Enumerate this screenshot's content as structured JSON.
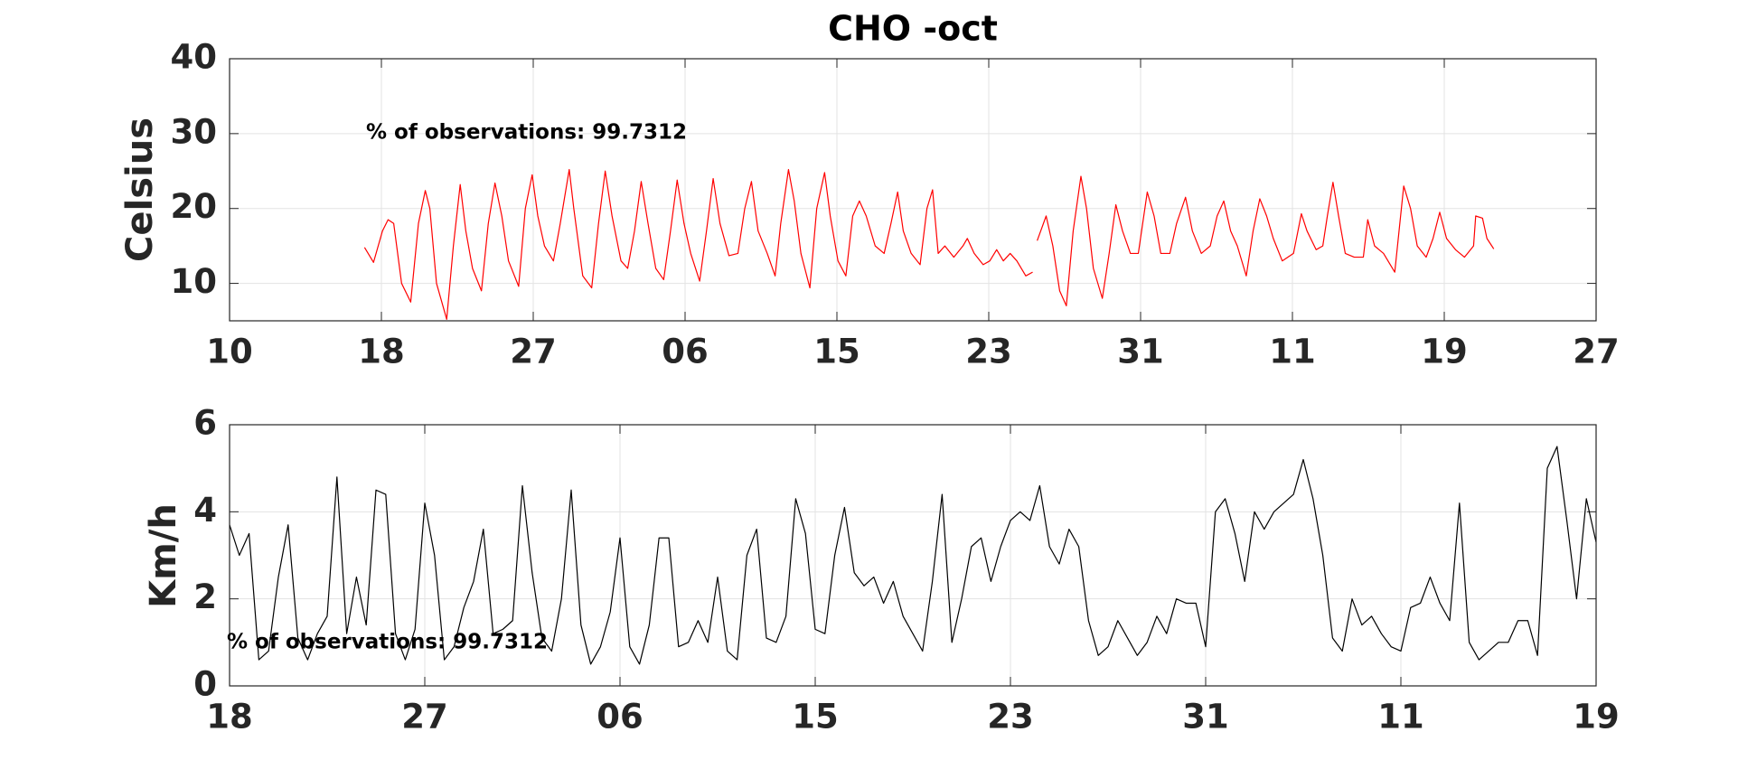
{
  "chart_data": [
    {
      "type": "line",
      "title": "CHO -oct",
      "ylabel": "Celsius",
      "annotation": "% of observations: 99.7312",
      "color": "#ff0000",
      "grid": true,
      "xlim": [
        0,
        9
      ],
      "xticks": [
        {
          "value": 0,
          "label": "10"
        },
        {
          "value": 1,
          "label": "18"
        },
        {
          "value": 2,
          "label": "27"
        },
        {
          "value": 3,
          "label": "06"
        },
        {
          "value": 4,
          "label": "15"
        },
        {
          "value": 5,
          "label": "23"
        },
        {
          "value": 6,
          "label": "31"
        },
        {
          "value": 7,
          "label": "11"
        },
        {
          "value": 8,
          "label": "19"
        },
        {
          "value": 9,
          "label": "27"
        }
      ],
      "ylim": [
        5,
        40
      ],
      "yticks": [
        10,
        20,
        30,
        40
      ],
      "x": [
        0.889,
        0.948,
        1.007,
        1.044,
        1.081,
        1.133,
        1.193,
        1.244,
        1.289,
        1.319,
        1.363,
        1.43,
        1.474,
        1.519,
        1.556,
        1.6,
        1.659,
        1.704,
        1.748,
        1.793,
        1.837,
        1.904,
        1.948,
        1.993,
        2.03,
        2.074,
        2.133,
        2.178,
        2.237,
        2.267,
        2.326,
        2.385,
        2.43,
        2.474,
        2.519,
        2.578,
        2.622,
        2.667,
        2.711,
        2.756,
        2.807,
        2.859,
        2.904,
        2.948,
        2.993,
        3.037,
        3.096,
        3.141,
        3.185,
        3.23,
        3.289,
        3.348,
        3.393,
        3.437,
        3.481,
        3.541,
        3.593,
        3.63,
        3.681,
        3.719,
        3.763,
        3.822,
        3.867,
        3.919,
        3.956,
        4.007,
        4.059,
        4.104,
        4.148,
        4.193,
        4.252,
        4.311,
        4.356,
        4.4,
        4.437,
        4.489,
        4.548,
        4.593,
        4.63,
        4.667,
        4.711,
        4.77,
        4.83,
        4.859,
        4.904,
        4.963,
        5.007,
        5.052,
        5.096,
        5.141,
        5.185,
        5.244,
        5.289,
        5.304,
        5.319,
        5.378,
        5.422,
        5.467,
        5.511,
        5.556,
        5.607,
        5.644,
        5.689,
        5.748,
        5.793,
        5.837,
        5.881,
        5.933,
        5.985,
        6.044,
        6.089,
        6.133,
        6.193,
        6.237,
        6.296,
        6.341,
        6.4,
        6.459,
        6.504,
        6.548,
        6.593,
        6.637,
        6.696,
        6.741,
        6.785,
        6.83,
        6.874,
        6.933,
        7.007,
        7.059,
        7.096,
        7.156,
        7.2,
        7.23,
        7.267,
        7.304,
        7.348,
        7.407,
        7.467,
        7.496,
        7.541,
        7.6,
        7.674,
        7.733,
        7.778,
        7.822,
        7.881,
        7.926,
        7.97,
        8.015,
        8.074,
        8.133,
        8.193,
        8.207,
        8.252,
        8.281,
        8.326
      ],
      "values": [
        14.8,
        12.8,
        17,
        18.5,
        18,
        10,
        7.5,
        18,
        22.4,
        20,
        10,
        5.2,
        15,
        23.2,
        17,
        12,
        9,
        18,
        23.4,
        19,
        13,
        9.6,
        20,
        24.5,
        19,
        15,
        13,
        18,
        25.2,
        20,
        11,
        9.4,
        18,
        25,
        19,
        13,
        12,
        17,
        23.6,
        18,
        12,
        10.5,
        17,
        23.8,
        18,
        14,
        10.3,
        17,
        24,
        18,
        13.7,
        14,
        20,
        23.6,
        17,
        14,
        11,
        18,
        25.2,
        21,
        14,
        9.4,
        20,
        24.8,
        19,
        13,
        11,
        19,
        21,
        19,
        15,
        14,
        18,
        22.2,
        17,
        14,
        12.5,
        20,
        22.5,
        14,
        15,
        13.5,
        15,
        16,
        14,
        12.5,
        13,
        14.5,
        13,
        14,
        13,
        11,
        11.5,
        null,
        15.7,
        19,
        15,
        9,
        7,
        17,
        24.3,
        20,
        12,
        8,
        14,
        20.5,
        17,
        14,
        14,
        22.2,
        19,
        14,
        14,
        18,
        21.5,
        17,
        14,
        15,
        19,
        21,
        17,
        15,
        11,
        17,
        21.3,
        19,
        16,
        13,
        14,
        19.3,
        17,
        14.5,
        15,
        19,
        23.5,
        19,
        14,
        13.5,
        13.5,
        18.5,
        15,
        14,
        11.5,
        23,
        20,
        15,
        13.5,
        16,
        19.5,
        16,
        14.5,
        13.5,
        15,
        19,
        18.7,
        16,
        14.6
      ]
    },
    {
      "type": "line",
      "ylabel": "Km/h",
      "annotation": "% of observations: 99.7312",
      "color": "#000000",
      "grid": true,
      "xlim": [
        0,
        7
      ],
      "xticks": [
        {
          "value": 0,
          "label": "18"
        },
        {
          "value": 1,
          "label": "27"
        },
        {
          "value": 2,
          "label": "06"
        },
        {
          "value": 3,
          "label": "15"
        },
        {
          "value": 4,
          "label": "23"
        },
        {
          "value": 5,
          "label": "31"
        },
        {
          "value": 6,
          "label": "11"
        },
        {
          "value": 7,
          "label": "19"
        }
      ],
      "ylim": [
        0,
        6
      ],
      "yticks": [
        0,
        2,
        4,
        6
      ],
      "x": [
        0,
        0.05,
        0.1,
        0.15,
        0.2,
        0.25,
        0.3,
        0.35,
        0.4,
        0.45,
        0.5,
        0.55,
        0.6,
        0.65,
        0.7,
        0.75,
        0.8,
        0.85,
        0.9,
        0.95,
        1,
        1.05,
        1.1,
        1.15,
        1.2,
        1.25,
        1.3,
        1.35,
        1.4,
        1.45,
        1.5,
        1.55,
        1.6,
        1.65,
        1.7,
        1.75,
        1.8,
        1.85,
        1.9,
        1.95,
        2,
        2.05,
        2.1,
        2.15,
        2.2,
        2.25,
        2.3,
        2.35,
        2.4,
        2.45,
        2.5,
        2.55,
        2.6,
        2.65,
        2.7,
        2.75,
        2.8,
        2.85,
        2.9,
        2.95,
        3,
        3.05,
        3.1,
        3.15,
        3.2,
        3.25,
        3.3,
        3.35,
        3.4,
        3.45,
        3.5,
        3.55,
        3.6,
        3.65,
        3.7,
        3.75,
        3.8,
        3.85,
        3.9,
        3.95,
        4,
        4.05,
        4.1,
        4.15,
        4.2,
        4.25,
        4.3,
        4.35,
        4.4,
        4.45,
        4.5,
        4.55,
        4.6,
        4.65,
        4.7,
        4.75,
        4.8,
        4.85,
        4.9,
        4.95,
        5,
        5.05,
        5.1,
        5.15,
        5.2,
        5.25,
        5.3,
        5.35,
        5.4,
        5.45,
        5.5,
        5.55,
        5.6,
        5.65,
        5.7,
        5.75,
        5.8,
        5.85,
        5.9,
        5.95,
        6,
        6.05,
        6.1,
        6.15,
        6.2,
        6.25,
        6.3,
        6.35,
        6.4,
        6.45,
        6.5,
        6.55,
        6.6,
        6.65,
        6.7,
        6.75,
        6.8,
        6.85,
        6.9,
        6.95,
        7
      ],
      "values": [
        3.7,
        3.0,
        3.5,
        0.6,
        0.8,
        2.5,
        3.7,
        1.1,
        0.6,
        1.2,
        1.6,
        4.8,
        1.2,
        2.5,
        1.4,
        4.5,
        4.4,
        1.2,
        0.6,
        1.3,
        4.2,
        3.0,
        0.6,
        0.9,
        1.8,
        2.4,
        3.6,
        1.2,
        1.3,
        1.5,
        4.6,
        2.6,
        1.1,
        0.8,
        2.0,
        4.5,
        1.4,
        0.5,
        0.9,
        1.7,
        3.4,
        0.9,
        0.5,
        1.4,
        3.4,
        3.4,
        0.9,
        1.0,
        1.5,
        1.0,
        2.5,
        0.8,
        0.6,
        3.0,
        3.6,
        1.1,
        1.0,
        1.6,
        4.3,
        3.5,
        1.3,
        1.2,
        3.0,
        4.1,
        2.6,
        2.3,
        2.5,
        1.9,
        2.4,
        1.6,
        1.2,
        0.8,
        2.4,
        4.4,
        1.0,
        2.0,
        3.2,
        3.4,
        2.4,
        3.2,
        3.8,
        4.0,
        3.8,
        4.6,
        3.2,
        2.8,
        3.6,
        3.2,
        1.5,
        0.7,
        0.9,
        1.5,
        1.1,
        0.7,
        1.0,
        1.6,
        1.2,
        2.0,
        1.9,
        1.9,
        0.9,
        4.0,
        4.3,
        3.5,
        2.4,
        4.0,
        3.6,
        4.0,
        4.2,
        4.4,
        5.2,
        4.3,
        3.0,
        1.1,
        0.8,
        2.0,
        1.4,
        1.6,
        1.2,
        0.9,
        0.8,
        1.8,
        1.9,
        2.5,
        1.9,
        1.5,
        4.2,
        1.0,
        0.6,
        0.8,
        1.0,
        1.0,
        1.5,
        1.5,
        0.7,
        5.0,
        5.5,
        3.8,
        2.0,
        4.3,
        3.3
      ]
    }
  ]
}
